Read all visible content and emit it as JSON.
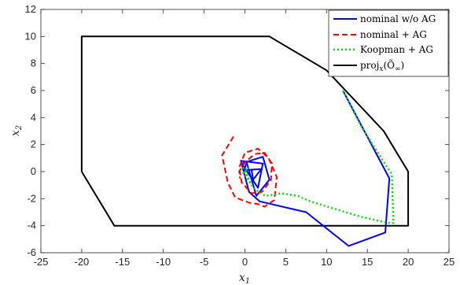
{
  "chart_data": {
    "type": "line",
    "xlabel": "x",
    "xlabel_sub": "1",
    "ylabel": "x",
    "ylabel_sub": "2",
    "xlim": [
      -25,
      25
    ],
    "ylim": [
      -6,
      12
    ],
    "xticks": [
      "-25",
      "-20",
      "-15",
      "-10",
      "-5",
      "0",
      "5",
      "10",
      "15",
      "20",
      "25"
    ],
    "yticks": [
      "-6",
      "-4",
      "-2",
      "0",
      "2",
      "4",
      "6",
      "8",
      "10",
      "12"
    ],
    "grid": false,
    "legend_position": "top-right",
    "series": [
      {
        "name": "nominal w/o AG",
        "color": "#0000ff",
        "dash": "solid",
        "x": [
          12.0,
          17.7,
          17.2,
          12.7,
          7.5,
          1.8,
          0.5,
          -0.5,
          2.2,
          1.6,
          -0.4,
          2.2,
          3.0,
          1.4,
          0.2,
          -0.1,
          2.0,
          1.0,
          0.8
        ],
        "y": [
          6.0,
          -0.5,
          -4.5,
          -5.5,
          -3.0,
          -2.2,
          -1.5,
          0.8,
          0.6,
          -1.2,
          0.6,
          1.1,
          -0.6,
          -1.8,
          0.7,
          0.1,
          0.2,
          -0.6,
          0.2
        ]
      },
      {
        "name": "nominal + AG",
        "color": "#ff0000",
        "dash": "dashed",
        "x": [
          -1.4,
          -2.8,
          -2.1,
          -1.2,
          0.5,
          1.6,
          2.4,
          3.6,
          3.9,
          2.9,
          1.6,
          0.0,
          -0.7,
          -0.4,
          0.8,
          2.1,
          3.2,
          3.3,
          2.4,
          1.2,
          0.0,
          -0.7,
          -0.6
        ],
        "y": [
          2.6,
          1.2,
          -0.8,
          -1.9,
          -2.3,
          -2.4,
          -2.6,
          -2.1,
          -0.4,
          1.0,
          1.7,
          1.4,
          0.3,
          -0.8,
          -1.6,
          -1.5,
          -0.6,
          0.6,
          1.4,
          1.3,
          0.7,
          0.0,
          -0.5
        ]
      },
      {
        "name": "Koopman + AG",
        "color": "#00dd00",
        "dash": "dotted",
        "x": [
          12.0,
          14.2,
          16.7,
          18.0,
          18.2,
          17.5,
          14.0,
          8.0,
          6.5,
          4.5,
          2.5,
          1.0,
          -0.3,
          0.6,
          -0.2,
          0.4,
          0.1
        ],
        "y": [
          6.0,
          3.4,
          1.0,
          -0.2,
          -3.8,
          -3.8,
          -3.3,
          -2.2,
          -1.8,
          -1.6,
          -1.8,
          -1.2,
          0.4,
          -0.8,
          -0.1,
          0.3,
          0.0
        ]
      },
      {
        "name": "proj",
        "color": "#000000",
        "dash": "solid",
        "x": [
          -20,
          -16,
          20,
          20,
          17,
          10,
          3,
          -20,
          -20
        ],
        "y": [
          0,
          -4,
          -4,
          0,
          3,
          7.5,
          10,
          10,
          0
        ]
      }
    ],
    "legend": [
      {
        "label": "nominal w/o AG"
      },
      {
        "label": "nominal + AG"
      },
      {
        "label": "Koopman + AG"
      },
      {
        "label_main": "proj",
        "label_sub": "x",
        "label_arg": "(Õ",
        "label_inf": "∞",
        "label_end": ")"
      }
    ]
  }
}
